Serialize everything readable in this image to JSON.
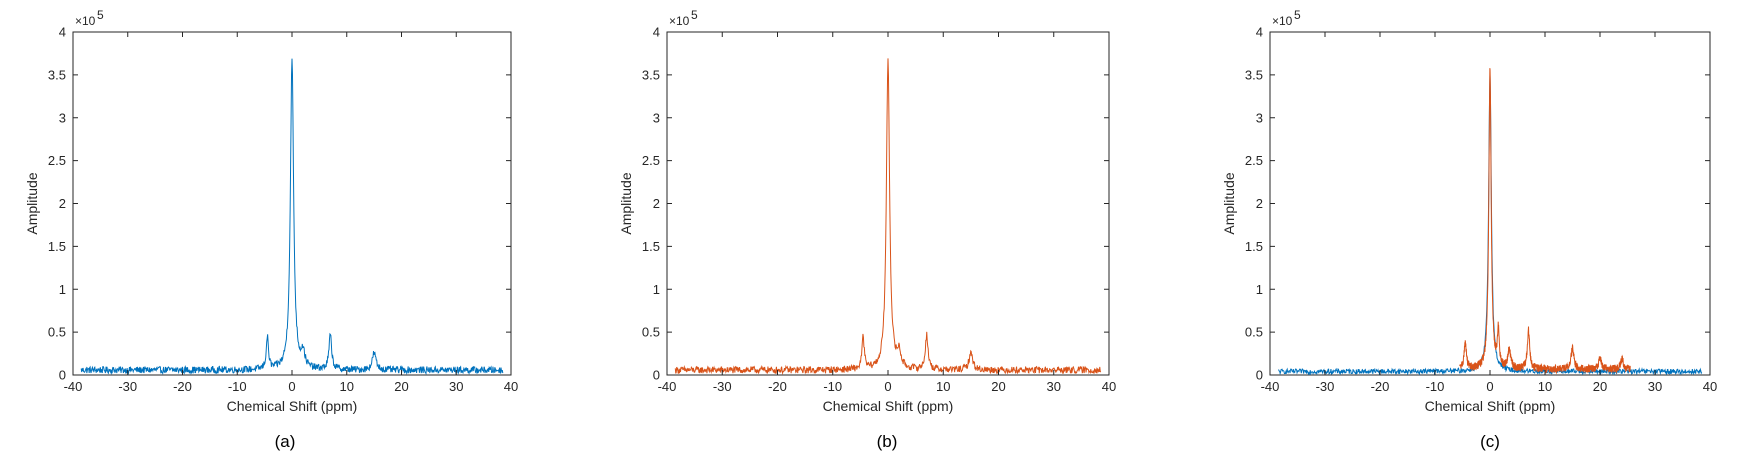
{
  "colors": {
    "blue": "#0072BD",
    "orange": "#D95319",
    "axis": "#262626"
  },
  "chart_data": [
    {
      "type": "line",
      "caption": "(a)",
      "xlabel": "Chemical Shift (ppm)",
      "ylabel": "Amplitude",
      "y_multiplier": "×10",
      "y_exponent": "5",
      "xlim": [
        -40,
        40
      ],
      "ylim": [
        0,
        4
      ],
      "x_ticks": [
        "-40",
        "-30",
        "-20",
        "-10",
        "0",
        "10",
        "20",
        "30",
        "40"
      ],
      "y_ticks": [
        "0",
        "0.5",
        "1",
        "1.5",
        "2",
        "2.5",
        "3",
        "3.5",
        "4"
      ],
      "grid": false,
      "series": [
        {
          "color": "#0072BD",
          "baseline": 0.07,
          "x_range": [
            -38.5,
            38.5
          ],
          "peaks": [
            {
              "x": 0,
              "height": 3.62,
              "width": 0.35
            },
            {
              "x": -4.5,
              "height": 0.37,
              "width": 0.25
            },
            {
              "x": 7.0,
              "height": 0.4,
              "width": 0.3
            },
            {
              "x": 2.0,
              "height": 0.18,
              "width": 0.4
            },
            {
              "x": 15.0,
              "height": 0.2,
              "width": 0.4
            }
          ]
        }
      ]
    },
    {
      "type": "line",
      "caption": "(b)",
      "xlabel": "Chemical Shift (ppm)",
      "ylabel": "Amplitude",
      "y_multiplier": "×10",
      "y_exponent": "5",
      "xlim": [
        -40,
        40
      ],
      "ylim": [
        0,
        4
      ],
      "x_ticks": [
        "-40",
        "-30",
        "-20",
        "-10",
        "0",
        "10",
        "20",
        "30",
        "40"
      ],
      "y_ticks": [
        "0",
        "0.5",
        "1",
        "1.5",
        "2",
        "2.5",
        "3",
        "3.5",
        "4"
      ],
      "grid": false,
      "series": [
        {
          "color": "#D95319",
          "baseline": 0.07,
          "x_range": [
            -38.5,
            38.5
          ],
          "peaks": [
            {
              "x": 0,
              "height": 3.62,
              "width": 0.35
            },
            {
              "x": -4.5,
              "height": 0.37,
              "width": 0.25
            },
            {
              "x": 7.0,
              "height": 0.4,
              "width": 0.3
            },
            {
              "x": 2.0,
              "height": 0.18,
              "width": 0.4
            },
            {
              "x": 15.0,
              "height": 0.2,
              "width": 0.4
            }
          ]
        }
      ]
    },
    {
      "type": "line",
      "caption": "(c)",
      "xlabel": "Chemical Shift (ppm)",
      "ylabel": "Amplitude",
      "y_multiplier": "×10",
      "y_exponent": "5",
      "xlim": [
        -40,
        40
      ],
      "ylim": [
        0,
        4
      ],
      "x_ticks": [
        "-40",
        "-30",
        "-20",
        "-10",
        "0",
        "10",
        "20",
        "30",
        "40"
      ],
      "y_ticks": [
        "0",
        "0.5",
        "1",
        "1.5",
        "2",
        "2.5",
        "3",
        "3.5",
        "4"
      ],
      "grid": false,
      "series": [
        {
          "color": "#0072BD",
          "baseline": 0.05,
          "x_range": [
            -38.5,
            38.5
          ],
          "peaks": [
            {
              "x": 0,
              "height": 3.45,
              "width": 0.3
            }
          ]
        },
        {
          "color": "#D95319",
          "baseline": 0.08,
          "x_range": [
            -5.5,
            25.5
          ],
          "peaks": [
            {
              "x": 0,
              "height": 3.5,
              "width": 0.25
            },
            {
              "x": -4.5,
              "height": 0.3,
              "width": 0.25
            },
            {
              "x": 1.5,
              "height": 0.42,
              "width": 0.2
            },
            {
              "x": 7.0,
              "height": 0.45,
              "width": 0.25
            },
            {
              "x": 3.5,
              "height": 0.22,
              "width": 0.3
            },
            {
              "x": 15.0,
              "height": 0.25,
              "width": 0.3
            },
            {
              "x": 20.0,
              "height": 0.14,
              "width": 0.3
            },
            {
              "x": 24.0,
              "height": 0.12,
              "width": 0.3
            }
          ]
        }
      ]
    }
  ]
}
